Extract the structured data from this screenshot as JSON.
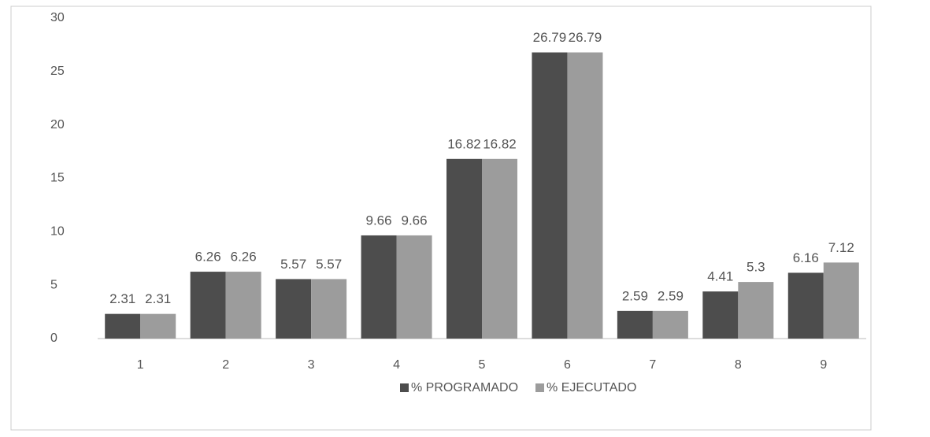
{
  "chart_data": {
    "type": "bar",
    "categories": [
      "1",
      "2",
      "3",
      "4",
      "5",
      "6",
      "7",
      "8",
      "9"
    ],
    "series": [
      {
        "name": "% PROGRAMADO",
        "color": "#4d4d4d",
        "values": [
          2.31,
          6.26,
          5.57,
          9.66,
          16.82,
          26.79,
          2.59,
          4.41,
          6.16
        ]
      },
      {
        "name": "% EJECUTADO",
        "color": "#9c9c9c",
        "values": [
          2.31,
          6.26,
          5.57,
          9.66,
          16.82,
          26.79,
          2.59,
          5.3,
          7.12
        ]
      }
    ],
    "ylim": [
      0,
      30
    ],
    "yticks": [
      0,
      5,
      10,
      15,
      20,
      25,
      30
    ],
    "grid": false,
    "legend": "bottom"
  }
}
